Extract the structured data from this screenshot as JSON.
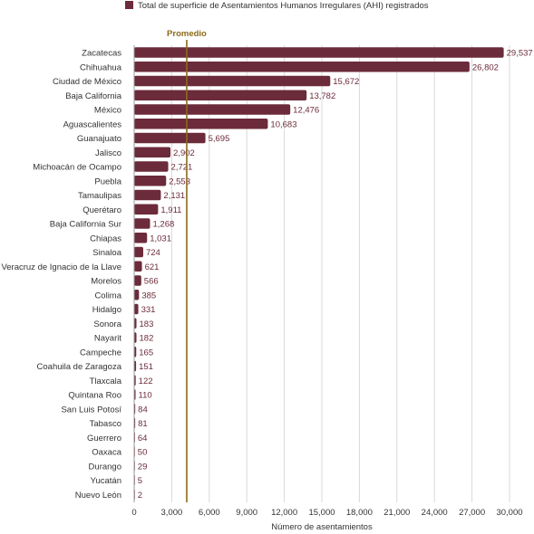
{
  "chart_data": {
    "type": "bar",
    "orientation": "horizontal",
    "legend": {
      "label": "Total de superficie de Asentamientos Humanos Irregulares (AHI) registrados",
      "placement": "top",
      "color": "#6b2b3a"
    },
    "average_label": "Promedio",
    "average_value": 4200,
    "xlabel": "Número de asentamientos",
    "ylabel": "",
    "xlim": [
      0,
      30000
    ],
    "xticks": [
      0,
      3000,
      6000,
      9000,
      12000,
      15000,
      18000,
      21000,
      24000,
      27000,
      30000
    ],
    "xtick_labels": [
      "0",
      "3,000",
      "6,000",
      "9,000",
      "12,000",
      "15,000",
      "18,000",
      "21,000",
      "24,000",
      "27,000",
      "30,000"
    ],
    "grid": true,
    "bar_color": "#6b2b3a",
    "average_color": "#8b6a1b",
    "categories": [
      "Zacatecas",
      "Chihuahua",
      "Ciudad de México",
      "Baja California",
      "México",
      "Aguascalientes",
      "Guanajuato",
      "Jalisco",
      "Michoacán de Ocampo",
      "Puebla",
      "Tamaulipas",
      "Querétaro",
      "Baja California Sur",
      "Chiapas",
      "Sinaloa",
      "Veracruz de Ignacio de la Llave",
      "Morelos",
      "Colima",
      "Hidalgo",
      "Sonora",
      "Nayarit",
      "Campeche",
      "Coahuila de Zaragoza",
      "Tlaxcala",
      "Quintana Roo",
      "San Luis Potosí",
      "Tabasco",
      "Guerrero",
      "Oaxaca",
      "Durango",
      "Yucatán",
      "Nuevo León"
    ],
    "values": [
      29537,
      26802,
      15672,
      13782,
      12476,
      10683,
      5695,
      2902,
      2721,
      2553,
      2131,
      1911,
      1268,
      1031,
      724,
      621,
      566,
      385,
      331,
      183,
      182,
      165,
      151,
      122,
      110,
      84,
      81,
      64,
      50,
      29,
      5,
      2
    ],
    "value_labels": [
      "29,537",
      "26,802",
      "15,672",
      "13,782",
      "12,476",
      "10,683",
      "5,695",
      "2,902",
      "2,721",
      "2,553",
      "2,131",
      "1,911",
      "1,268",
      "1,031",
      "724",
      "621",
      "566",
      "385",
      "331",
      "183",
      "182",
      "165",
      "151",
      "122",
      "110",
      "84",
      "81",
      "64",
      "50",
      "29",
      "5",
      "2"
    ]
  }
}
